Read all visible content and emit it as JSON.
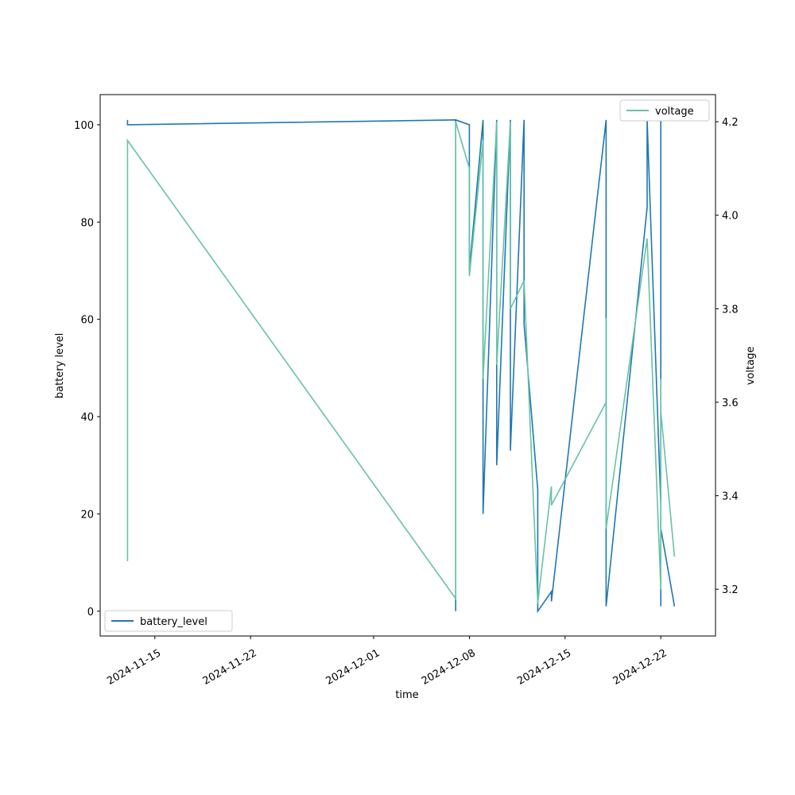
{
  "chart_data": {
    "type": "line",
    "xlabel": "time",
    "ylabel": "battery level",
    "y2label": "voltage",
    "xlim": [
      "2024-11-11",
      "2024-12-26"
    ],
    "xticks": [
      "2024-11-15",
      "2024-11-22",
      "2024-12-01",
      "2024-12-08",
      "2024-12-15",
      "2024-12-22"
    ],
    "ylim": [
      -5.1,
      106.2
    ],
    "yticks": [
      0,
      20,
      40,
      60,
      80,
      100
    ],
    "y2lim": [
      3.1,
      4.258
    ],
    "y2ticks": [
      3.2,
      3.4,
      3.6,
      3.8,
      {
        "value": 4.0,
        "label": "4.0"
      },
      4.2
    ],
    "series": [
      {
        "name": "battery_level",
        "color": "#1f77b4",
        "legend": "lower left",
        "x": [
          "2024-11-13",
          "2024-11-13",
          "2024-12-07",
          "2024-12-07",
          "2024-12-07",
          "2024-12-08",
          "2024-12-08",
          "2024-12-09",
          "2024-12-09",
          "2024-12-10",
          "2024-12-10",
          "2024-12-11",
          "2024-12-11",
          "2024-12-12",
          "2024-12-12",
          "2024-12-13",
          "2024-12-13",
          "2024-12-14",
          "2024-12-14",
          "2024-12-18",
          "2024-12-18",
          "2024-12-18",
          "2024-12-21",
          "2024-12-21",
          "2024-12-22",
          "2024-12-22",
          "2024-12-22",
          "2024-12-22",
          "2024-12-23"
        ],
        "values": [
          101,
          100,
          101,
          0,
          101,
          100,
          70,
          101,
          20,
          101,
          30,
          101,
          33,
          101,
          59,
          25,
          0,
          4,
          2,
          101,
          20,
          1,
          83,
          101,
          22,
          1,
          101,
          17,
          1
        ]
      },
      {
        "name": "voltage",
        "color": "#66c2a5",
        "axis": "y2",
        "legend": "upper right",
        "x": [
          "2024-11-13",
          "2024-11-13",
          "2024-11-13",
          "2024-12-07",
          "2024-12-07",
          "2024-12-08",
          "2024-12-08",
          "2024-12-09",
          "2024-12-09",
          "2024-12-10",
          "2024-12-10",
          "2024-12-11",
          "2024-12-11",
          "2024-12-12",
          "2024-12-13",
          "2024-12-14",
          "2024-12-14",
          "2024-12-18",
          "2024-12-18",
          "2024-12-18",
          "2024-12-21",
          "2024-12-22",
          "2024-12-22",
          "2024-12-22",
          "2024-12-23"
        ],
        "values": [
          3.46,
          3.26,
          4.16,
          3.18,
          4.2,
          4.1,
          3.87,
          4.16,
          3.65,
          4.2,
          3.68,
          4.2,
          3.8,
          3.86,
          3.17,
          3.42,
          3.38,
          3.6,
          3.78,
          3.33,
          3.95,
          3.2,
          3.65,
          3.58,
          3.27
        ]
      }
    ]
  }
}
